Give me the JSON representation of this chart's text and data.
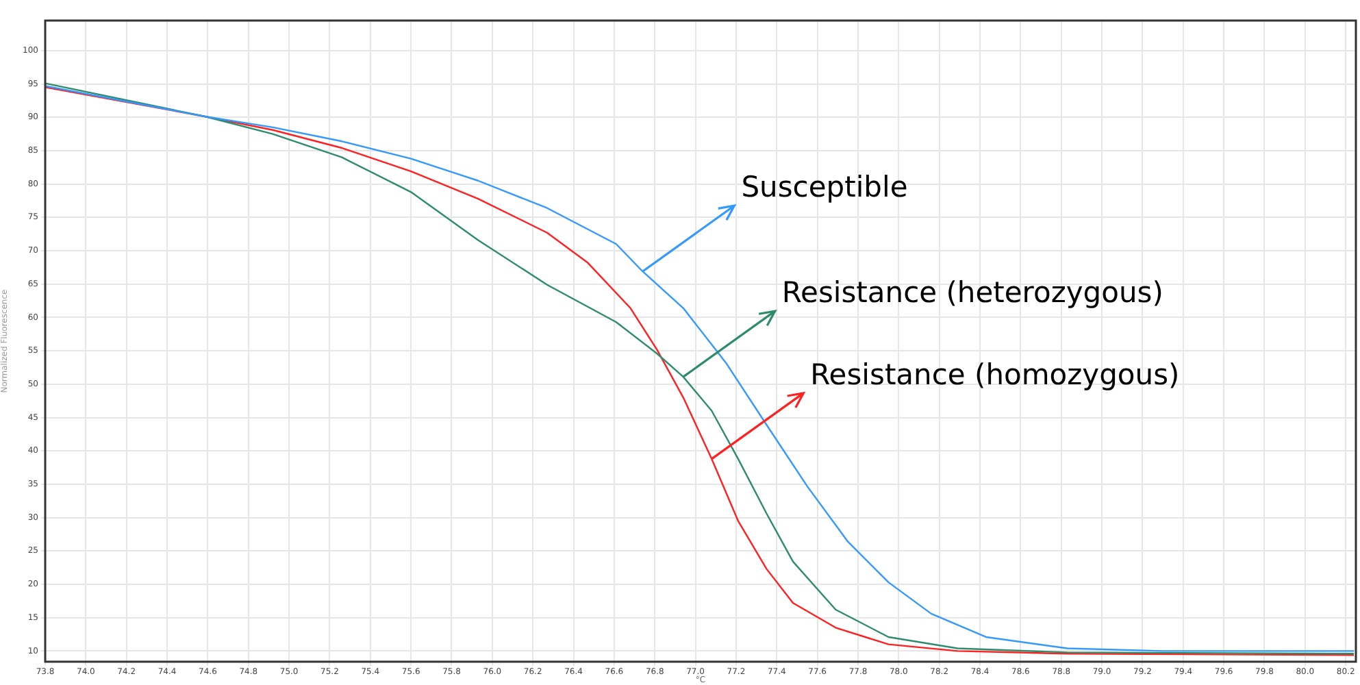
{
  "chart_data": {
    "type": "line",
    "xlabel": "°C",
    "ylabel": "Normalized Fluorescence",
    "xlim": [
      73.8,
      80.25
    ],
    "ylim": [
      8.4,
      104.5
    ],
    "xticks": [
      73.8,
      {
        "value": 74,
        "label": "74.0"
      },
      74.2,
      74.4,
      74.6,
      74.8,
      {
        "value": 75,
        "label": "75.0"
      },
      75.2,
      75.4,
      75.6,
      75.8,
      {
        "value": 76,
        "label": "76.0"
      },
      76.2,
      76.4,
      76.6,
      76.8,
      {
        "value": 77,
        "label": "77.0"
      },
      77.2,
      77.4,
      77.6,
      77.8,
      {
        "value": 78,
        "label": "78.0"
      },
      78.2,
      78.4,
      78.6,
      78.8,
      {
        "value": 79,
        "label": "79.0"
      },
      79.2,
      79.4,
      79.6,
      79.8,
      {
        "value": 80,
        "label": "80.0"
      },
      80.2
    ],
    "yticks": [
      10,
      15,
      20,
      25,
      30,
      35,
      40,
      45,
      50,
      55,
      60,
      65,
      70,
      75,
      80,
      85,
      90,
      95,
      100
    ],
    "grid": true,
    "legend": false,
    "marker": "none",
    "line_style": "solid",
    "series": [
      {
        "color": "#3399ff",
        "x": [
          73.8,
          74.59,
          74.92,
          75.26,
          75.6,
          75.93,
          76.27,
          76.61,
          76.74,
          76.94,
          77.15,
          77.35,
          77.55,
          77.75,
          77.95,
          78.16,
          78.43,
          78.83,
          79.3,
          80.24
        ],
        "values": [
          94.7,
          90.1,
          88.5,
          86.4,
          83.8,
          80.5,
          76.4,
          71,
          66.9,
          61.4,
          53.2,
          43.9,
          34.7,
          26.4,
          20.3,
          15.6,
          12.1,
          10.4,
          10,
          10
        ]
      },
      {
        "color": "#2e8b6e",
        "x": [
          73.8,
          74.59,
          74.92,
          75.26,
          75.6,
          75.93,
          76.27,
          76.61,
          76.81,
          76.94,
          77.08,
          77.21,
          77.35,
          77.48,
          77.69,
          77.95,
          78.29,
          78.83,
          80.24
        ],
        "values": [
          95.1,
          90.1,
          87.5,
          84,
          78.8,
          71.6,
          64.9,
          59.3,
          54.6,
          51.1,
          46,
          38.8,
          30.6,
          23.4,
          16.2,
          12.1,
          10.4,
          9.8,
          9.6
        ]
      },
      {
        "color": "#ff2020",
        "x": [
          73.8,
          74.59,
          74.92,
          75.26,
          75.6,
          75.93,
          76.27,
          76.47,
          76.68,
          76.81,
          76.94,
          77.08,
          77.21,
          77.35,
          77.48,
          77.69,
          77.95,
          78.29,
          78.83,
          80.24
        ],
        "values": [
          94.5,
          90.1,
          88.1,
          85.4,
          81.9,
          77.8,
          72.7,
          68.2,
          61.4,
          55.2,
          48,
          38.8,
          29.5,
          22.3,
          17.2,
          13.5,
          11,
          10,
          9.6,
          9.4
        ]
      }
    ],
    "annotations": [
      {
        "text": "Susceptible",
        "x": 76.74,
        "y": 66.9
      },
      {
        "text": "Resistance (heterozygous)",
        "x": 76.94,
        "y": 51.1
      },
      {
        "text": "Resistance (homozygous)",
        "x": 77.08,
        "y": 38.8
      }
    ]
  }
}
